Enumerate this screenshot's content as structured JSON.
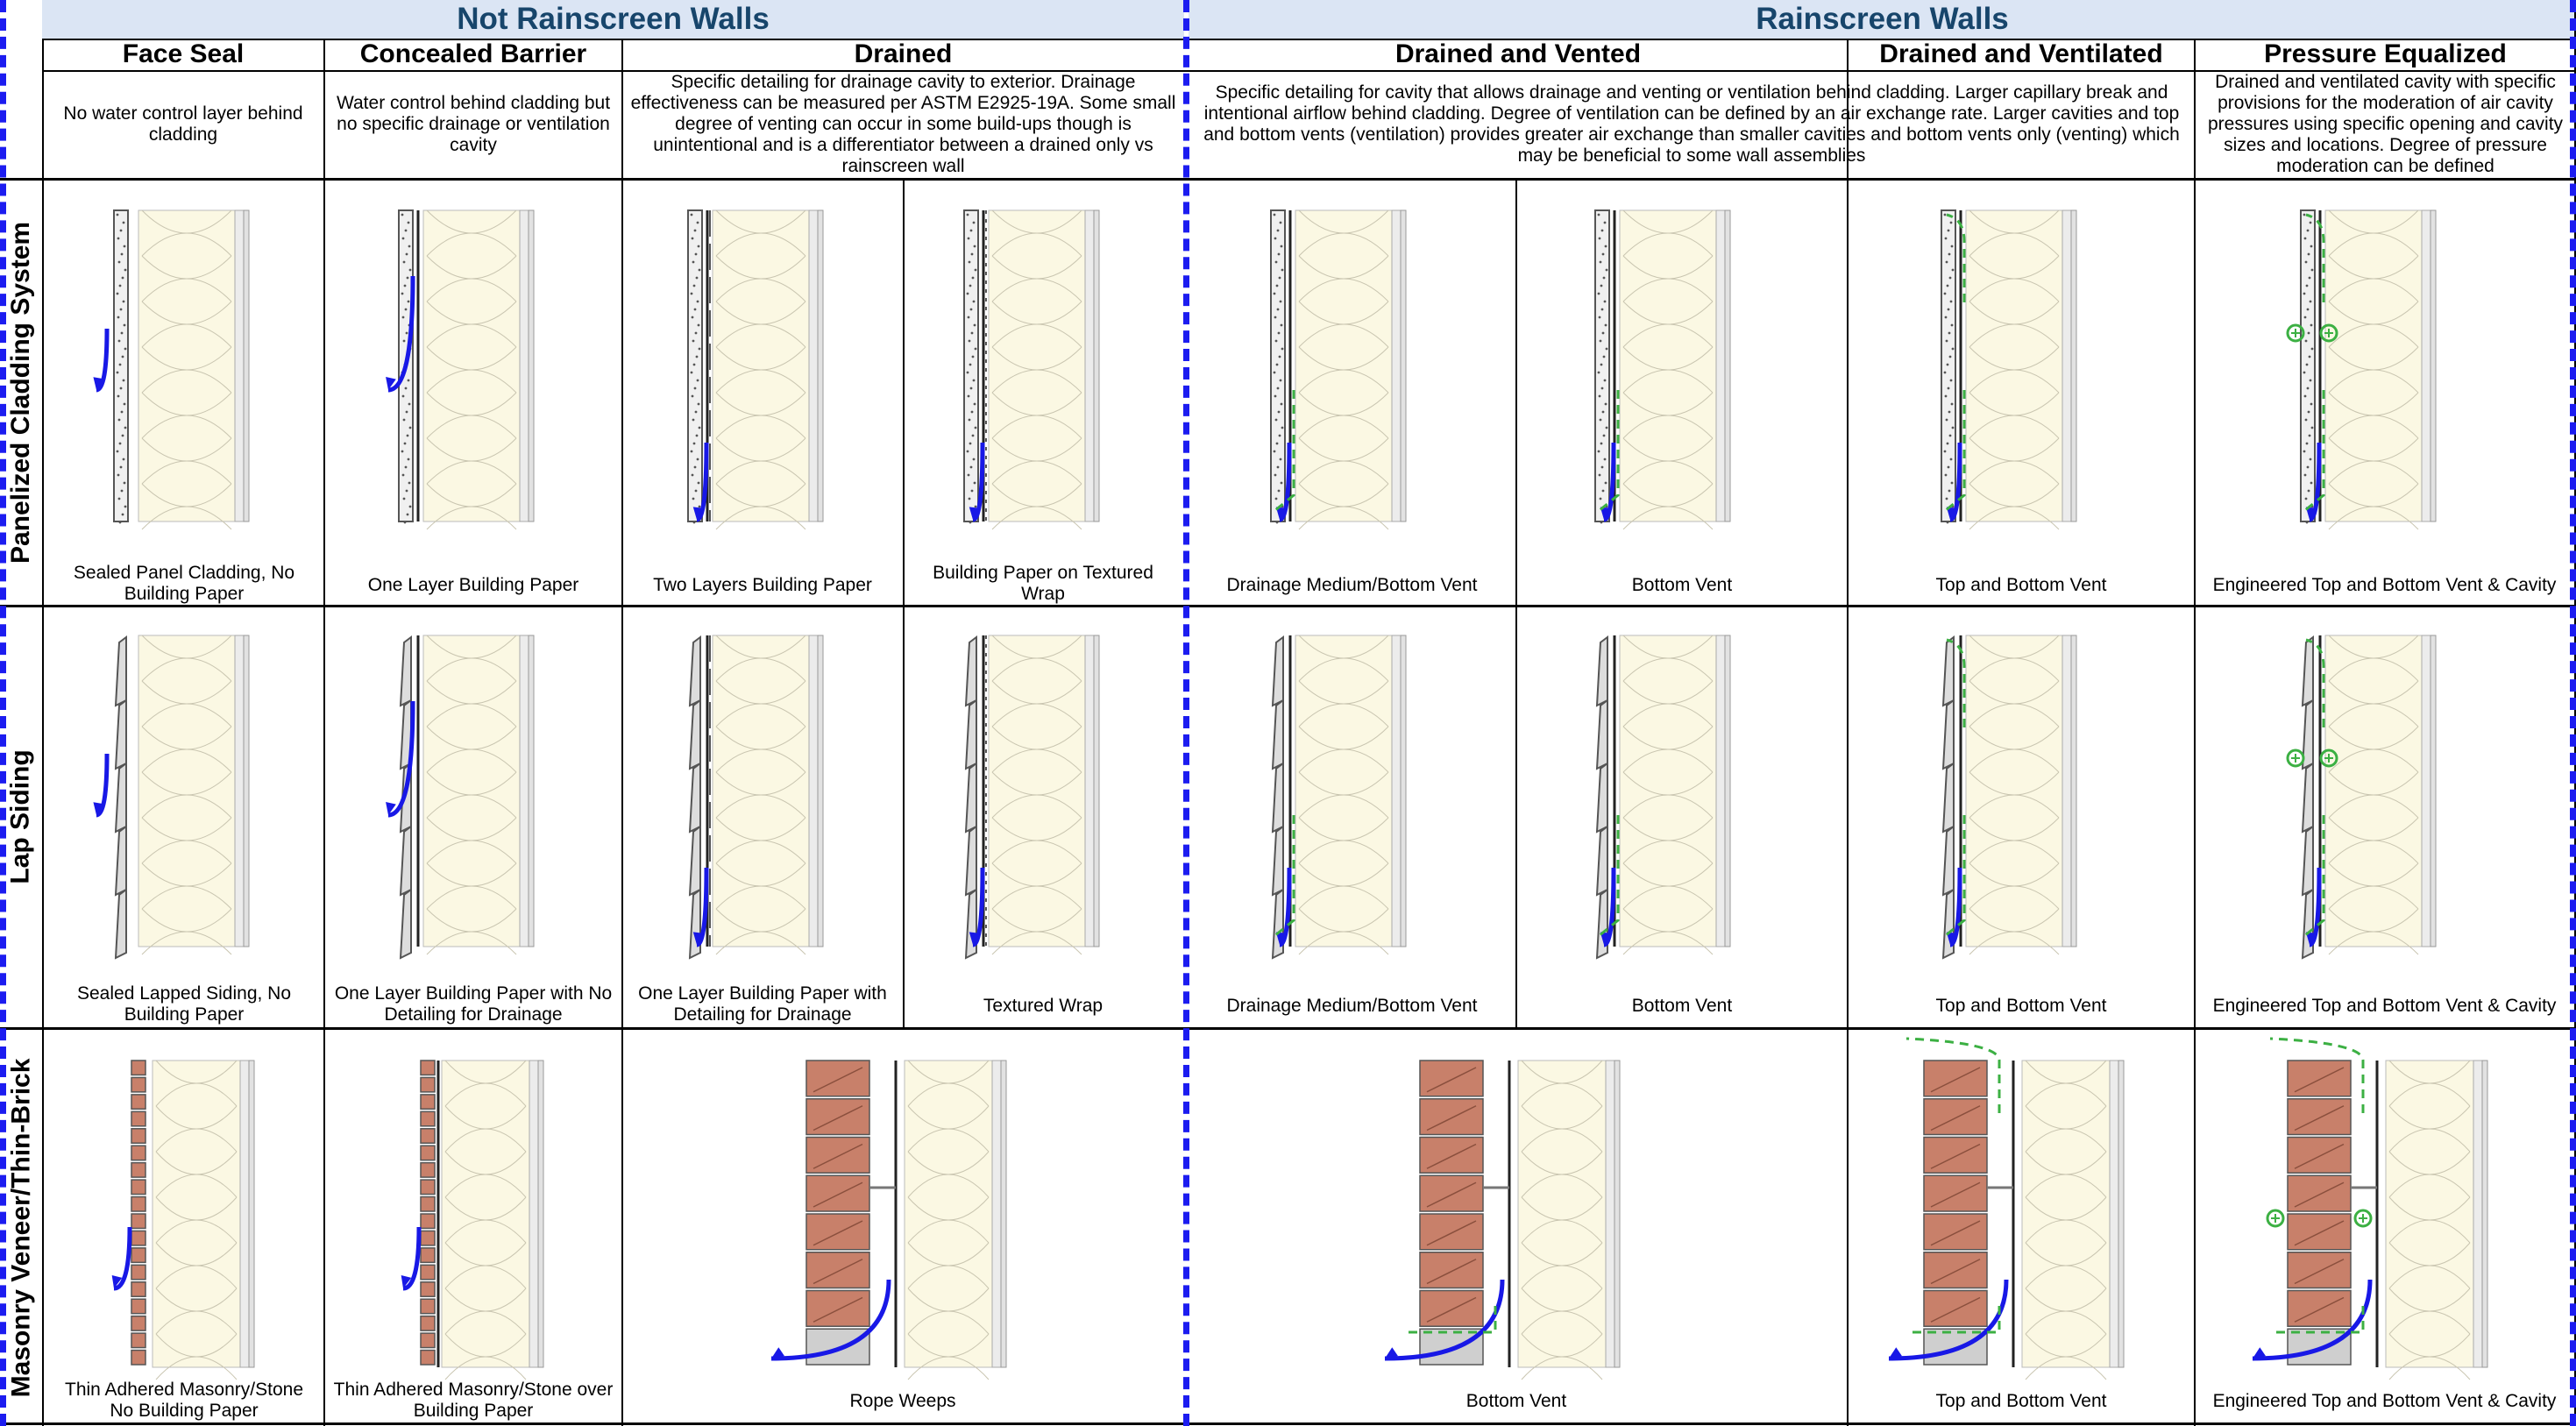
{
  "groups": {
    "not_rainscreen": "Not Rainscreen Walls",
    "rainscreen": "Rainscreen Walls"
  },
  "categories": {
    "face_seal": "Face Seal",
    "concealed_barrier": "Concealed Barrier",
    "drained": "Drained",
    "drained_vented": "Drained and Vented",
    "drained_ventilated": "Drained and Ventilated",
    "pressure_equalized": "Pressure Equalized"
  },
  "descriptions": {
    "face_seal": "No water control layer behind cladding",
    "concealed_barrier": "Water control behind cladding but no specific drainage or ventilation cavity",
    "drained": "Specific detailing for drainage cavity to exterior. Drainage effectiveness can be measured per ASTM E2925-19A. Some small degree of venting can occur in some build-ups though is unintentional and is a differentiator between a drained only vs rainscreen wall",
    "rainscreen": "Specific detailing for cavity that allows drainage and venting or ventilation behind cladding. Larger capillary break and intentional airflow behind cladding. Degree of ventilation can be defined by an air exchange rate. Larger cavities and top and bottom vents (ventilation) provides greater air exchange than smaller cavities and bottom vents only (venting) which may be beneficial to some wall assemblies",
    "pressure_equalized": "Drained and ventilated cavity with specific provisions for the moderation of air cavity pressures using specific opening and cavity sizes and locations. Degree of pressure moderation can be defined"
  },
  "rows": {
    "panelized": "Panelized Cladding System",
    "lap": "Lap Siding",
    "masonry": "Masonry Veneer/Thin-Brick"
  },
  "captions": {
    "panelized": [
      "Sealed Panel Cladding, No Building Paper",
      "One Layer Building Paper",
      "Two Layers Building Paper",
      "Building Paper on Textured Wrap",
      "Drainage Medium/Bottom Vent",
      "Bottom Vent",
      "Top and Bottom Vent",
      "Engineered Top and Bottom Vent & Cavity"
    ],
    "lap": [
      "Sealed Lapped Siding, No Building Paper",
      "One Layer Building Paper with No Detailing for Drainage",
      "One Layer Building Paper with Detailing for Drainage",
      "Textured Wrap",
      "Drainage Medium/Bottom Vent",
      "Bottom Vent",
      "Top and Bottom Vent",
      "Engineered Top and Bottom Vent & Cavity"
    ],
    "masonry": [
      "Thin Adhered Masonry/Stone No Building Paper",
      "Thin Adhered Masonry/Stone over Building Paper",
      "Rope Weeps",
      "Bottom Vent",
      "Top and Bottom Vent",
      "Engineered Top and Bottom Vent & Cavity"
    ]
  },
  "colors": {
    "header_bg": "#dbe5f4",
    "header_text": "#17456b",
    "water_arrow": "#1818e6",
    "air_arrow": "#3cb043",
    "insulation": "#fbf8e3",
    "brick": "#c8806a",
    "divider": "#1c1cf0"
  }
}
